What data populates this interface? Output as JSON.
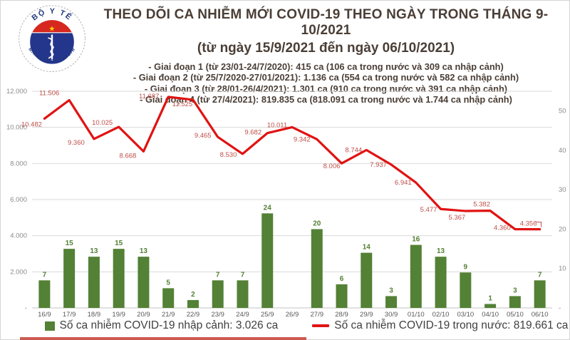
{
  "header": {
    "title": "THEO DÕI CA NHIỄM MỚI COVID-19 THEO NGÀY TRONG THÁNG 9-10/2021",
    "subtitle": "(từ ngày 15/9/2021 đến ngày 06/10/2021)",
    "bullets": [
      "- Giai đoạn 1 (từ 23/01-24/7/2020): 415 ca (106 ca trong nước và 309 ca nhập cảnh)",
      "- Giai đoạn 2 (từ 25/7/2020-27/01/2021): 1.136 ca (554 ca trong nước và 582 ca nhập cảnh)",
      "- Giai đoạn 3 (từ 28/01-26/4/2021): 1.301 ca (910 ca trong nước và 391 ca nhập cảnh)",
      "- Giai đoạn 4 (từ 27/4/2021): 819.835 ca (818.091 ca trong nước và 1.744 ca nhập cảnh)"
    ],
    "logo": {
      "top_text": "BỘ Y TẾ",
      "bottom_text": "MINISTRY OF HEALTH"
    }
  },
  "colors": {
    "title_text": "#4a3e36",
    "line": "#e01312",
    "line_label": "#bf4e48",
    "bar": "#538135",
    "bar_label": "#538135",
    "grid": "#dadada",
    "axis_label": "#8a8a8a",
    "x_label": "#595959",
    "legend_text": "#3f3f3f"
  },
  "chart_data": {
    "type": "bar",
    "subtype": "combo bar+line, dual axis",
    "categories": [
      "16/9",
      "17/9",
      "18/9",
      "19/9",
      "20/9",
      "21/9",
      "22/9",
      "23/9",
      "24/9",
      "25/9",
      "26/9",
      "27/9",
      "28/9",
      "29/9",
      "30/9",
      "01/10",
      "02/10",
      "03/10",
      "04/10",
      "05/10",
      "06/10"
    ],
    "series": [
      {
        "name": "Số ca nhiễm COVID-19 nhập cảnh",
        "type": "bar",
        "axis": "right",
        "color": "#538135",
        "values": [
          7,
          15,
          13,
          15,
          13,
          5,
          2,
          7,
          7,
          24,
          0,
          20,
          6,
          14,
          3,
          16,
          13,
          9,
          1,
          3,
          7
        ],
        "labels": [
          "7",
          "15",
          "13",
          "15",
          "13",
          "5",
          "2",
          "7",
          "7",
          "24",
          "",
          "20",
          "6",
          "14",
          "3",
          "16",
          "13",
          "9",
          "1",
          "3",
          "7"
        ]
      },
      {
        "name": "Số ca nhiễm COVID-19 trong nước",
        "type": "line",
        "axis": "left",
        "color": "#e01312",
        "values": [
          10482,
          11506,
          9360,
          10025,
          8668,
          11687,
          11525,
          9465,
          8530,
          9682,
          10011,
          9342,
          8006,
          8744,
          7937,
          6941,
          5477,
          5367,
          5382,
          4360,
          4356
        ],
        "labels": [
          "10.482",
          "11.506",
          "9.360",
          "10.025",
          "8.668",
          "11.687",
          "11.525",
          "9.465",
          "8.530",
          "9.682",
          "10.011",
          "9.342",
          "8.006",
          "8.744",
          "7.937",
          "6.941",
          "5.477",
          "5.367",
          "5.382",
          "4.360",
          "4.356"
        ]
      }
    ],
    "left_axis": {
      "min": 0,
      "max": 12000,
      "ticks": [
        "12.000",
        "10.000",
        "8.000",
        "6.000",
        "4.000",
        "2.000",
        "-"
      ],
      "tick_values": [
        12000,
        10000,
        8000,
        6000,
        4000,
        2000,
        0
      ]
    },
    "right_axis": {
      "min": 0,
      "max": 55,
      "ticks": [
        "50",
        "40",
        "30",
        "20",
        "10",
        "-"
      ],
      "tick_values": [
        50,
        40,
        30,
        20,
        10,
        0
      ]
    },
    "grid": true,
    "legend_position": "bottom",
    "legend": [
      {
        "swatch": "bar",
        "label": "Số ca nhiễm COVID-19 nhập cảnh: 3.026 ca"
      },
      {
        "swatch": "line",
        "label": "Số ca nhiễm COVID-19 trong nước: 819.661 ca"
      }
    ]
  }
}
